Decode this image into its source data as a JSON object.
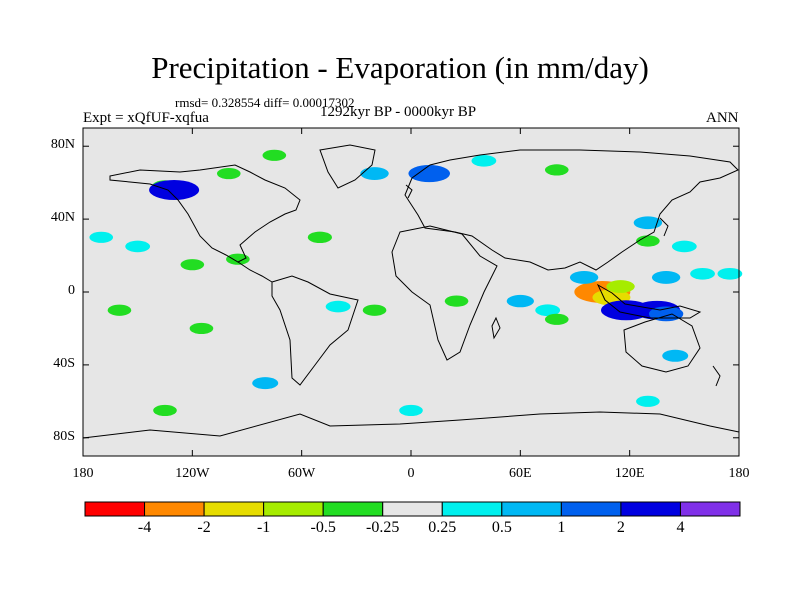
{
  "figure": {
    "title": "Precipitation - Evaporation (in mm/day)",
    "stats": "rmsd= 0.328554 diff= 0.00017302",
    "experiment": "Expt = xQfUF-xqfua",
    "period": "1292kyr BP - 0000kyr BP",
    "season": "ANN"
  },
  "map": {
    "lon_range": [
      -180,
      180
    ],
    "lat_range": [
      -90,
      90
    ],
    "y_ticks": [
      {
        "lat": 80,
        "label": "80N"
      },
      {
        "lat": 40,
        "label": "40N"
      },
      {
        "lat": 0,
        "label": "0"
      },
      {
        "lat": -40,
        "label": "40S"
      },
      {
        "lat": -80,
        "label": "80S"
      }
    ],
    "x_ticks": [
      {
        "lon": -180,
        "label": "180"
      },
      {
        "lon": -120,
        "label": "120W"
      },
      {
        "lon": -60,
        "label": "60W"
      },
      {
        "lon": 0,
        "label": "0"
      },
      {
        "lon": 60,
        "label": "60E"
      },
      {
        "lon": 120,
        "label": "120E"
      },
      {
        "lon": 180,
        "label": "180"
      }
    ],
    "background_color": "#e6e6e6",
    "coast_color": "#000000"
  },
  "colorbar": {
    "colors": [
      "#ff0000",
      "#ff8800",
      "#e6dc00",
      "#a6ec00",
      "#22dd22",
      "#e6e6e6",
      "#00f0ee",
      "#00b8f4",
      "#0060ee",
      "#0000e0",
      "#8030e8"
    ],
    "labels": [
      "-4",
      "-2",
      "-1",
      "-0.5",
      "-0.25",
      "0.25",
      "0.5",
      "1",
      "2",
      "4"
    ]
  },
  "chart_data": {
    "type": "heatmap",
    "title": "Precipitation - Evaporation (in mm/day)",
    "variable": "Precipitation - Evaporation anomaly",
    "units": "mm/day",
    "levels": [
      -4,
      -2,
      -1,
      -0.5,
      -0.25,
      0.25,
      0.5,
      1,
      2,
      4
    ],
    "rmsd": 0.328554,
    "diff": 0.00017302,
    "anomaly_patches": [
      {
        "lon": 105,
        "lat": 0,
        "value": -3
      },
      {
        "lon": 110,
        "lat": -3,
        "value": -1.5
      },
      {
        "lon": 115,
        "lat": 3,
        "value": -0.7
      },
      {
        "lon": 118,
        "lat": -10,
        "value": 2.5
      },
      {
        "lon": 135,
        "lat": -10,
        "value": 2.2
      },
      {
        "lon": 140,
        "lat": -12,
        "value": 1.2
      },
      {
        "lon": 95,
        "lat": 8,
        "value": 0.7
      },
      {
        "lon": 140,
        "lat": 8,
        "value": 0.7
      },
      {
        "lon": 160,
        "lat": 10,
        "value": 0.4
      },
      {
        "lon": 175,
        "lat": 10,
        "value": 0.4
      },
      {
        "lon": 150,
        "lat": 25,
        "value": 0.4
      },
      {
        "lon": 130,
        "lat": 28,
        "value": -0.3
      },
      {
        "lon": 130,
        "lat": 38,
        "value": 0.7
      },
      {
        "lon": 60,
        "lat": -5,
        "value": 0.6
      },
      {
        "lon": 75,
        "lat": -10,
        "value": 0.4
      },
      {
        "lon": 80,
        "lat": -15,
        "value": -0.3
      },
      {
        "lon": 25,
        "lat": -5,
        "value": -0.3
      },
      {
        "lon": -40,
        "lat": -8,
        "value": 0.4
      },
      {
        "lon": -20,
        "lat": -10,
        "value": -0.3
      },
      {
        "lon": -170,
        "lat": 30,
        "value": 0.3
      },
      {
        "lon": -150,
        "lat": 25,
        "value": 0.4
      },
      {
        "lon": -120,
        "lat": 15,
        "value": -0.3
      },
      {
        "lon": -95,
        "lat": 18,
        "value": -0.3
      },
      {
        "lon": -50,
        "lat": 30,
        "value": -0.35
      },
      {
        "lon": -135,
        "lat": 58,
        "value": -0.5
      },
      {
        "lon": -130,
        "lat": 56,
        "value": 2.5
      },
      {
        "lon": -100,
        "lat": 65,
        "value": -0.3
      },
      {
        "lon": -75,
        "lat": 75,
        "value": -0.3
      },
      {
        "lon": -20,
        "lat": 65,
        "value": 0.7
      },
      {
        "lon": 10,
        "lat": 65,
        "value": 1.8
      },
      {
        "lon": 40,
        "lat": 72,
        "value": 0.4
      },
      {
        "lon": 80,
        "lat": 67,
        "value": -0.3
      },
      {
        "lon": -160,
        "lat": -10,
        "value": -0.3
      },
      {
        "lon": -115,
        "lat": -20,
        "value": -0.3
      },
      {
        "lon": -80,
        "lat": -50,
        "value": 0.5
      },
      {
        "lon": -135,
        "lat": -65,
        "value": -0.3
      },
      {
        "lon": 0,
        "lat": -65,
        "value": 0.3
      },
      {
        "lon": 130,
        "lat": -60,
        "value": 0.3
      },
      {
        "lon": 145,
        "lat": -35,
        "value": 0.5
      }
    ]
  }
}
